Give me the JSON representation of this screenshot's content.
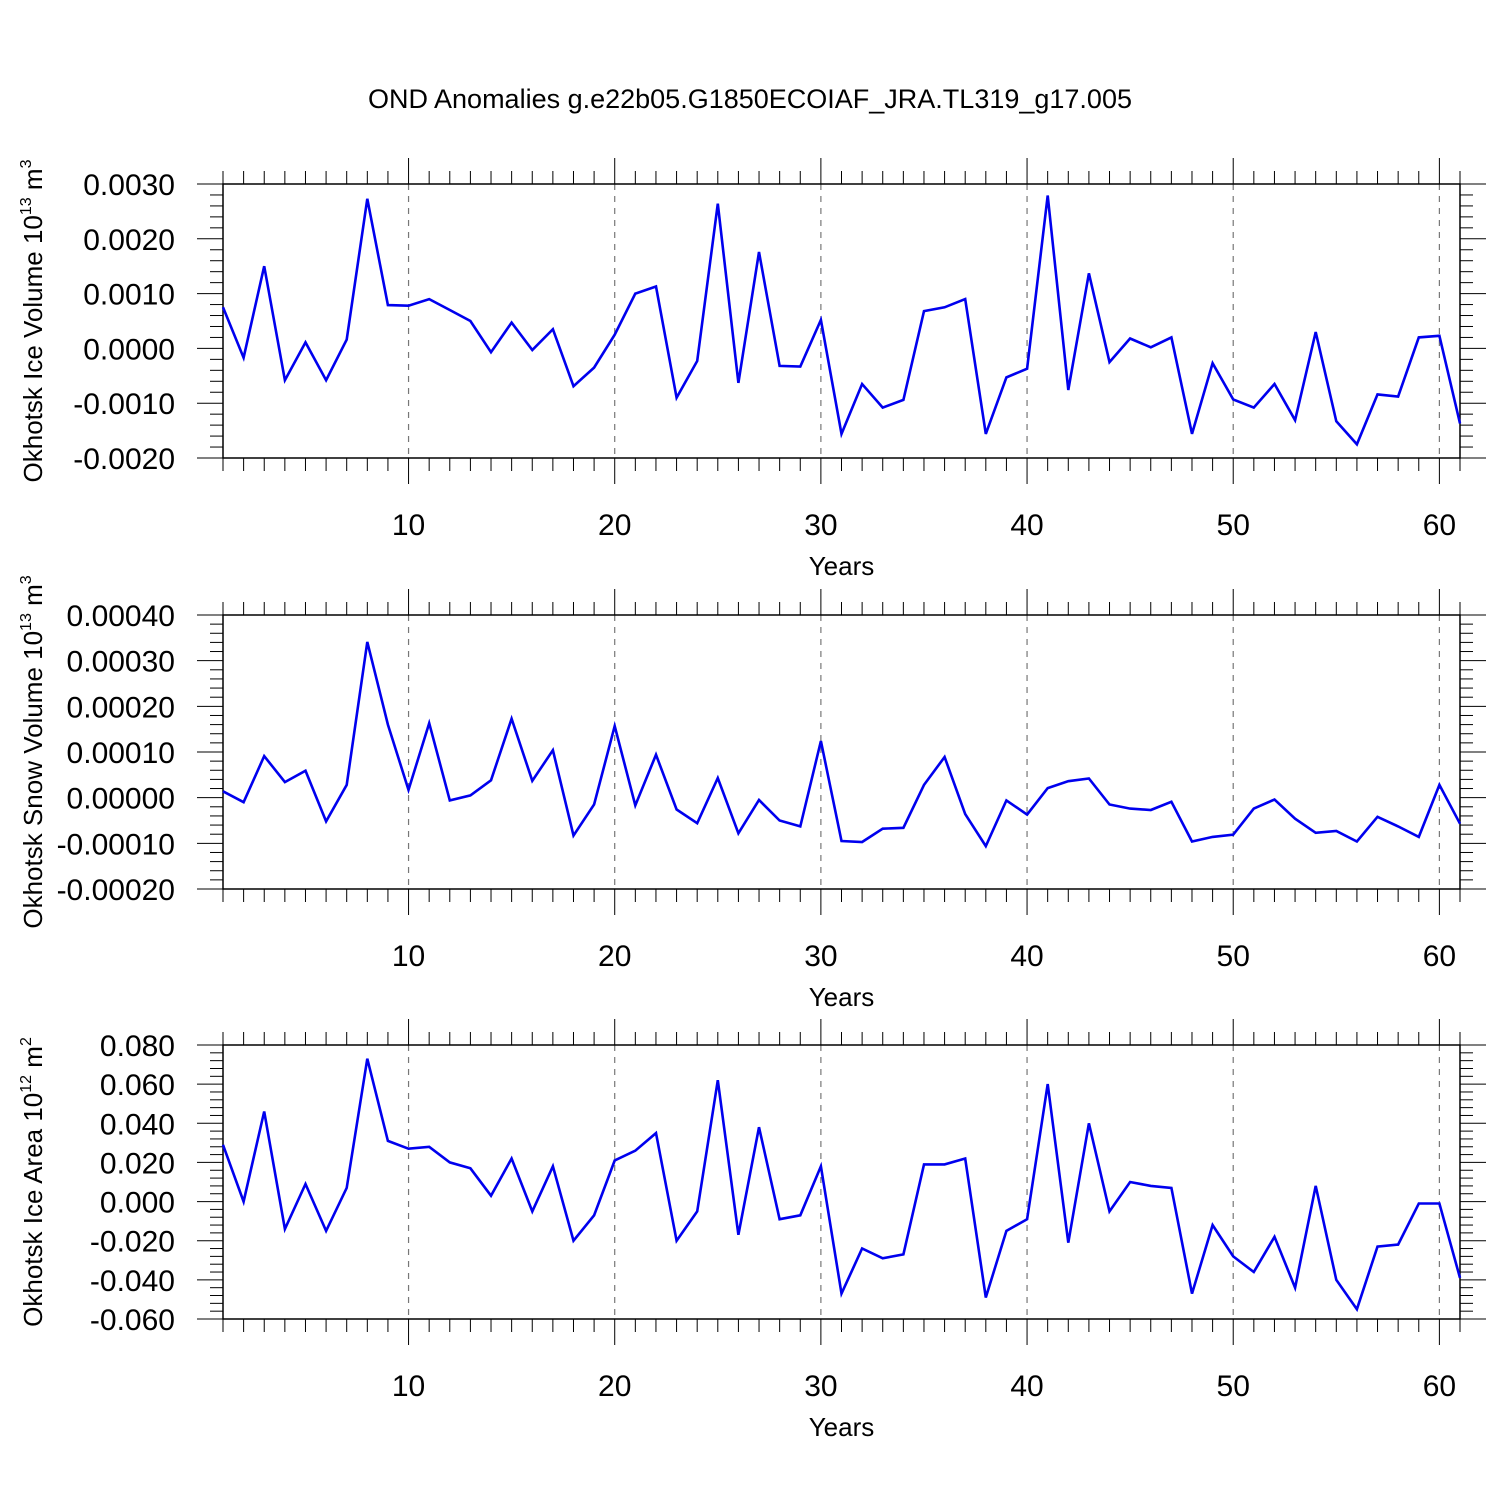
{
  "title": "OND Anomalies g.e22b05.G1850ECOIAF_JRA.TL319_g17.005",
  "line_color": "#0000ee",
  "grid_color": "#777777",
  "chart_data": [
    {
      "type": "line",
      "ylabel": {
        "text": "Okhotsk Ice Volume 10",
        "sup": "13",
        "unit": " m",
        "unit_sup": "3"
      },
      "xlabel": "Years",
      "xlim": [
        1,
        61
      ],
      "ylim": [
        -0.002,
        0.003
      ],
      "yticks": [
        -0.002,
        -0.001,
        0.0,
        0.001,
        0.002,
        0.003
      ],
      "ytick_labels": [
        "-0.0020",
        "-0.0010",
        "0.0000",
        "0.0010",
        "0.0020",
        "0.0030"
      ],
      "xticks": [
        10,
        20,
        30,
        40,
        50,
        60
      ],
      "xtick_labels": [
        "10",
        "20",
        "30",
        "40",
        "50",
        "60"
      ],
      "grid": "vertical dashed at labeled x ticks",
      "series": [
        {
          "values": [
            0.00075,
            -0.00017,
            0.0015,
            -0.00058,
            0.00011,
            -0.00058,
            0.00016,
            0.00273,
            0.00079,
            0.00078,
            0.0009,
            0.0007,
            0.0005,
            -7e-05,
            0.00047,
            -3e-05,
            0.00035,
            -0.00069,
            -0.00035,
            0.00025,
            0.001,
            0.00113,
            -0.0009,
            -0.00023,
            0.00264,
            -0.00063,
            0.00176,
            -0.00032,
            -0.00033,
            0.00052,
            -0.00156,
            -0.00065,
            -0.00108,
            -0.00094,
            0.00068,
            0.00075,
            0.0009,
            -0.00156,
            -0.00053,
            -0.00037,
            0.00279,
            -0.00076,
            0.00137,
            -0.00025,
            0.00018,
            2e-05,
            0.0002,
            -0.00156,
            -0.00027,
            -0.00093,
            -0.00108,
            -0.00065,
            -0.00131,
            0.0003,
            -0.00133,
            -0.00175,
            -0.00084,
            -0.00088,
            0.0002,
            0.00023,
            -0.00137
          ]
        }
      ]
    },
    {
      "type": "line",
      "ylabel": {
        "text": "Okhotsk Snow Volume 10",
        "sup": "13",
        "unit": " m",
        "unit_sup": "3"
      },
      "xlabel": "Years",
      "xlim": [
        1,
        61
      ],
      "ylim": [
        -0.0002,
        0.0004
      ],
      "yticks": [
        -0.0002,
        -0.0001,
        0.0,
        0.0001,
        0.0002,
        0.0003,
        0.0004
      ],
      "ytick_labels": [
        "-0.00020",
        "-0.00010",
        "0.00000",
        "0.00010",
        "0.00020",
        "0.00030",
        "0.00040"
      ],
      "xticks": [
        10,
        20,
        30,
        40,
        50,
        60
      ],
      "xtick_labels": [
        "10",
        "20",
        "30",
        "40",
        "50",
        "60"
      ],
      "grid": "vertical dashed at labeled x ticks",
      "series": [
        {
          "values": [
            1.4e-05,
            -1e-05,
            9.1e-05,
            3.4e-05,
            5.9e-05,
            -5.2e-05,
            2.8e-05,
            0.000341,
            0.00016,
            1.7e-05,
            0.000163,
            -6e-06,
            5e-06,
            3.8e-05,
            0.000173,
            3.7e-05,
            0.000104,
            -8.3e-05,
            -1.5e-05,
            0.000157,
            -1.7e-05,
            9.4e-05,
            -2.6e-05,
            -5.6e-05,
            4.3e-05,
            -7.8e-05,
            -5e-06,
            -5e-05,
            -6.3e-05,
            0.000124,
            -9.5e-05,
            -9.7e-05,
            -6.8e-05,
            -6.6e-05,
            2.8e-05,
            8.9e-05,
            -3.6e-05,
            -0.000106,
            -6e-06,
            -3.7e-05,
            2.1e-05,
            3.6e-05,
            4.2e-05,
            -1.5e-05,
            -2.4e-05,
            -2.7e-05,
            -9e-06,
            -9.6e-05,
            -8.6e-05,
            -8.1e-05,
            -2.4e-05,
            -4e-06,
            -4.6e-05,
            -7.7e-05,
            -7.3e-05,
            -9.6e-05,
            -4.2e-05,
            -6.3e-05,
            -8.6e-05,
            2.8e-05,
            -5.7e-05
          ]
        }
      ]
    },
    {
      "type": "line",
      "ylabel": {
        "text": "Okhotsk Ice Area 10",
        "sup": "12",
        "unit": " m",
        "unit_sup": "2"
      },
      "xlabel": "Years",
      "xlim": [
        1,
        61
      ],
      "ylim": [
        -0.06,
        0.08
      ],
      "yticks": [
        -0.06,
        -0.04,
        -0.02,
        0.0,
        0.02,
        0.04,
        0.06,
        0.08
      ],
      "ytick_labels": [
        "-0.060",
        "-0.040",
        "-0.020",
        "0.000",
        "0.020",
        "0.040",
        "0.060",
        "0.080"
      ],
      "xticks": [
        10,
        20,
        30,
        40,
        50,
        60
      ],
      "xtick_labels": [
        "10",
        "20",
        "30",
        "40",
        "50",
        "60"
      ],
      "grid": "vertical dashed at labeled x ticks",
      "series": [
        {
          "values": [
            0.029,
            0.0,
            0.046,
            -0.014,
            0.009,
            -0.015,
            0.007,
            0.073,
            0.031,
            0.027,
            0.028,
            0.02,
            0.017,
            0.003,
            0.022,
            -0.005,
            0.018,
            -0.02,
            -0.007,
            0.021,
            0.026,
            0.035,
            -0.02,
            -0.005,
            0.062,
            -0.017,
            0.038,
            -0.009,
            -0.007,
            0.018,
            -0.047,
            -0.024,
            -0.029,
            -0.027,
            0.019,
            0.019,
            0.022,
            -0.049,
            -0.015,
            -0.009,
            0.06,
            -0.021,
            0.04,
            -0.005,
            0.01,
            0.008,
            0.007,
            -0.047,
            -0.012,
            -0.028,
            -0.036,
            -0.018,
            -0.044,
            0.008,
            -0.04,
            -0.055,
            -0.023,
            -0.022,
            -0.001,
            -0.001,
            -0.039
          ]
        }
      ]
    }
  ]
}
